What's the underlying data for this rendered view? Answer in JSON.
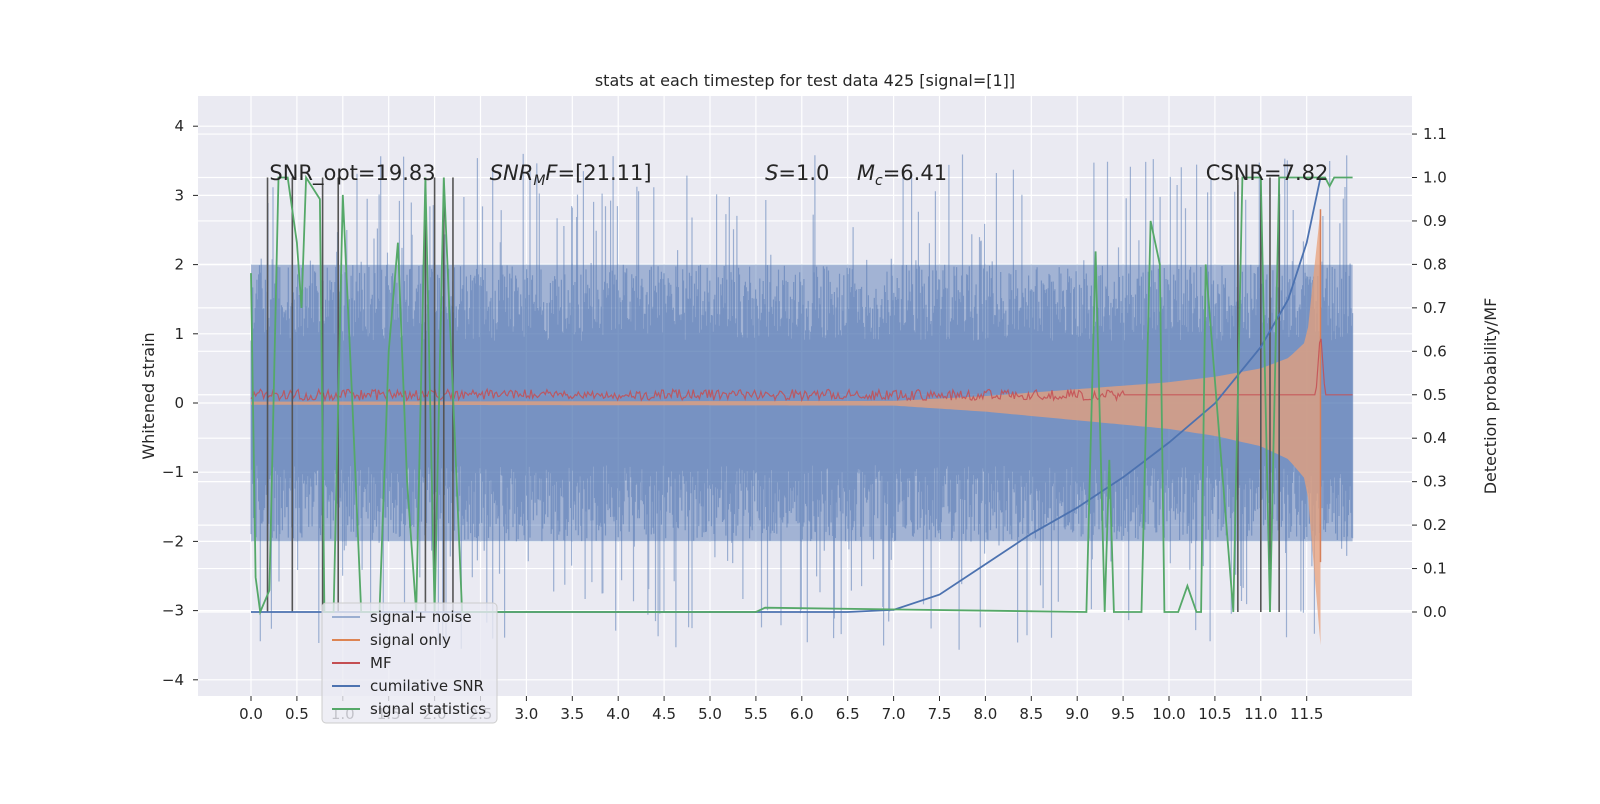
{
  "chart_data": {
    "type": "line",
    "title": "stats at each timestep for test data 425 [signal=[1]]",
    "ylabel_left": "Whitened strain",
    "ylabel_right": "Detection probability/MF",
    "xlim": [
      -0.6,
      12.6
    ],
    "ylim_left": [
      -4.4,
      4.5
    ],
    "ylim_right": [
      -0.2,
      1.2
    ],
    "x_ticks": [
      "0.0",
      "0.5",
      "1.0",
      "1.5",
      "2.0",
      "2.5",
      "3.0",
      "3.5",
      "4.0",
      "4.5",
      "5.0",
      "5.5",
      "6.0",
      "6.5",
      "7.0",
      "7.5",
      "8.0",
      "8.5",
      "9.0",
      "9.5",
      "10.0",
      "10.5",
      "11.0",
      "11.5"
    ],
    "y_ticks_left": [
      "−4",
      "−3",
      "−2",
      "−1",
      "0",
      "1",
      "2",
      "3",
      "4"
    ],
    "y_ticks_right": [
      "0.0",
      "0.1",
      "0.2",
      "0.3",
      "0.4",
      "0.5",
      "0.6",
      "0.7",
      "0.8",
      "0.9",
      "1.0",
      "1.1"
    ],
    "grid": true,
    "legend_position": "lower-left",
    "annotations": [
      {
        "text": "SNR_opt=19.83",
        "x": 0.2
      },
      {
        "text": "SNR",
        "sub": "M",
        "suffix": "F=[21.11]",
        "x": 2.6,
        "italic": true
      },
      {
        "text": "S",
        "suffix": "=1.0",
        "x": 5.6,
        "italic": true
      },
      {
        "text": "M",
        "sub": "c",
        "suffix": "=6.41",
        "x": 6.6,
        "italic": true
      },
      {
        "text": "CSNR=7.82",
        "x": 10.4
      }
    ],
    "series": [
      {
        "name": "signal+ noise",
        "color": "#4c72b0",
        "description": "noise envelope",
        "x": [
          0,
          12
        ],
        "amplitude_left": 2.0,
        "spikes_to": 4.0
      },
      {
        "name": "signal only",
        "color": "#dd8452",
        "x": [
          0,
          7,
          8,
          9,
          10,
          10.5,
          11,
          11.3,
          11.5,
          11.65
        ],
        "envelope_left": [
          0.02,
          0.03,
          0.1,
          0.2,
          0.3,
          0.38,
          0.5,
          0.65,
          0.9,
          2.8
        ]
      },
      {
        "name": "MF",
        "color": "#c44e52",
        "x": [
          0,
          11.6,
          11.65,
          11.7,
          12
        ],
        "y_right": [
          0.5,
          0.5,
          0.65,
          0.5,
          0.5
        ]
      },
      {
        "name": "cumilative SNR",
        "color": "#4c72b0",
        "x": [
          0,
          6.5,
          7.0,
          7.5,
          8.0,
          8.5,
          9.0,
          9.5,
          10.0,
          10.5,
          11.0,
          11.3,
          11.5,
          11.65
        ],
        "y_right": [
          0.0,
          0.0,
          0.005,
          0.04,
          0.11,
          0.18,
          0.24,
          0.31,
          0.39,
          0.48,
          0.61,
          0.72,
          0.85,
          1.0
        ]
      },
      {
        "name": "signal statistics",
        "color": "#55a868",
        "x": [
          0.0,
          0.05,
          0.1,
          0.2,
          0.3,
          0.4,
          0.5,
          0.55,
          0.6,
          0.75,
          0.8,
          0.9,
          1.0,
          1.1,
          1.2,
          1.4,
          1.5,
          1.6,
          1.7,
          1.8,
          1.9,
          2.0,
          2.1,
          2.2,
          2.3,
          2.35,
          5.5,
          5.6,
          9.1,
          9.2,
          9.3,
          9.35,
          9.4,
          9.7,
          9.8,
          9.9,
          9.95,
          10.1,
          10.2,
          10.3,
          10.35,
          10.4,
          10.7,
          10.8,
          11.0,
          11.1,
          11.2,
          11.3,
          11.4,
          11.5,
          11.6,
          11.7,
          11.75,
          11.8,
          12.0
        ],
        "y_right": [
          0.78,
          0.08,
          0.0,
          0.05,
          1.0,
          1.0,
          0.85,
          0.7,
          1.0,
          0.95,
          0.0,
          0.0,
          0.96,
          0.5,
          0.0,
          0.0,
          0.6,
          0.85,
          0.3,
          0.0,
          1.0,
          0.0,
          1.0,
          0.5,
          0.0,
          0.0,
          0.0,
          0.01,
          0.0,
          0.83,
          0.0,
          0.35,
          0.0,
          0.0,
          0.9,
          0.8,
          0.0,
          0.0,
          0.06,
          0.0,
          0.0,
          0.8,
          0.0,
          1.0,
          1.0,
          0.0,
          1.0,
          1.0,
          1.0,
          1.0,
          1.0,
          1.0,
          0.98,
          1.0,
          1.0
        ]
      },
      {
        "name": "",
        "color": "#555555",
        "description": "vertical markers",
        "x_markers": [
          0.18,
          0.45,
          0.78,
          0.95,
          1.9,
          2.0,
          2.1,
          2.2,
          10.75,
          11.0,
          11.1,
          11.2
        ]
      }
    ]
  }
}
